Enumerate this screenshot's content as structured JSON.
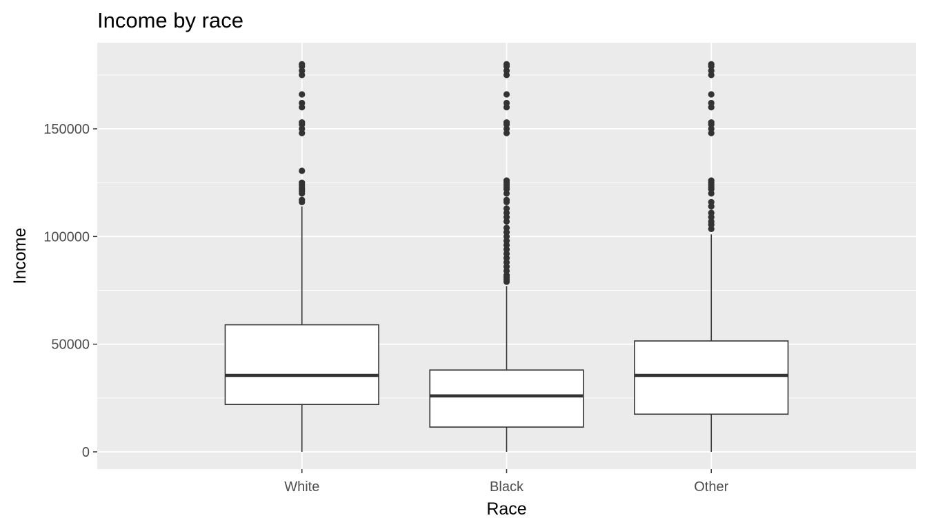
{
  "chart_data": {
    "type": "boxplot",
    "title": "Income by race",
    "xlabel": "Race",
    "ylabel": "Income",
    "categories": [
      "White",
      "Black",
      "Other"
    ],
    "ylim": [
      -8000,
      190000
    ],
    "yticks": [
      0,
      50000,
      100000,
      150000
    ],
    "ytick_labels": [
      "0",
      "50000",
      "100000",
      "150000"
    ],
    "grid": true,
    "legend": "none",
    "colors": {
      "panel": "#ebebeb",
      "grid": "#ffffff",
      "box_fill": "#ffffff",
      "box_stroke": "#333333",
      "outlier": "#333333"
    },
    "boxes": [
      {
        "category": "White",
        "whisker_low": 0,
        "q1": 22000,
        "median": 35500,
        "q3": 59000,
        "whisker_high": 114000,
        "outliers": [
          116000,
          117000,
          120000,
          121000,
          122000,
          123000,
          124000,
          125000,
          130500,
          148000,
          150000,
          152000,
          153000,
          160000,
          162000,
          166000,
          175000,
          177000,
          179000,
          180000
        ]
      },
      {
        "category": "Black",
        "whisker_low": 0,
        "q1": 11500,
        "median": 26000,
        "q3": 38000,
        "whisker_high": 77000,
        "outliers": [
          79000,
          80000,
          81000,
          82000,
          84000,
          86000,
          88000,
          90000,
          92000,
          94000,
          96000,
          98000,
          100000,
          102000,
          104000,
          107000,
          109000,
          111000,
          113000,
          116000,
          117000,
          120000,
          122000,
          123000,
          124000,
          125000,
          126000,
          148000,
          150000,
          152000,
          153000,
          160000,
          162000,
          166000,
          175000,
          177000,
          179000,
          180000
        ]
      },
      {
        "category": "Other",
        "whisker_low": 0,
        "q1": 17500,
        "median": 35500,
        "q3": 51500,
        "whisker_high": 101000,
        "outliers": [
          103500,
          105500,
          107000,
          109000,
          111000,
          114000,
          116000,
          120000,
          122000,
          123000,
          124000,
          125000,
          126000,
          148000,
          150000,
          152000,
          153000,
          160000,
          162000,
          166000,
          175000,
          177000,
          179000,
          180000
        ]
      }
    ]
  }
}
